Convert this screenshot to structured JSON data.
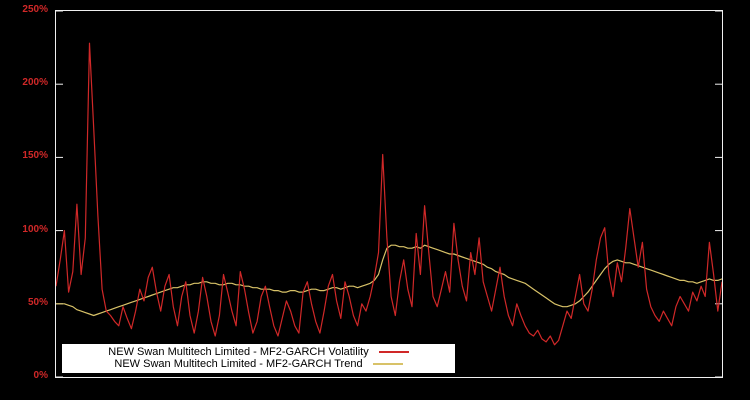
{
  "chart_data": {
    "type": "line",
    "title": "",
    "xlabel": "",
    "ylabel": "",
    "background": "#000000",
    "plot_border_color": "#f0f0f0",
    "ylim": [
      0,
      250
    ],
    "yticks": [
      0,
      50,
      100,
      150,
      200,
      250
    ],
    "ytick_labels": [
      "0%",
      "50%",
      "100%",
      "150%",
      "200%",
      "250%"
    ],
    "ytick_color": "#d02828",
    "x_tick_labels_visible": false,
    "grid": false,
    "legend": {
      "position": "bottom-left",
      "background": "#ffffff",
      "text_color": "#000000"
    },
    "units": "percent",
    "series": [
      {
        "name": "NEW Swan Multitech Limited - MF2-GARCH Volatility",
        "color": "#d02828",
        "values": [
          62,
          80,
          100,
          58,
          72,
          118,
          70,
          95,
          228,
          170,
          110,
          60,
          45,
          42,
          38,
          35,
          48,
          40,
          33,
          45,
          60,
          52,
          68,
          75,
          58,
          45,
          62,
          70,
          48,
          35,
          55,
          65,
          42,
          30,
          45,
          68,
          55,
          38,
          28,
          42,
          70,
          58,
          45,
          35,
          72,
          60,
          44,
          30,
          38,
          55,
          62,
          48,
          35,
          28,
          40,
          52,
          45,
          35,
          30,
          58,
          65,
          50,
          38,
          30,
          45,
          62,
          70,
          52,
          40,
          65,
          55,
          42,
          35,
          50,
          45,
          55,
          68,
          85,
          152,
          95,
          55,
          42,
          65,
          80,
          60,
          48,
          98,
          70,
          117,
          85,
          55,
          48,
          60,
          72,
          58,
          105,
          80,
          62,
          52,
          85,
          70,
          95,
          65,
          55,
          45,
          60,
          75,
          55,
          42,
          35,
          50,
          42,
          35,
          30,
          28,
          32,
          26,
          24,
          28,
          22,
          25,
          35,
          45,
          40,
          55,
          70,
          50,
          45,
          60,
          80,
          95,
          102,
          70,
          55,
          78,
          65,
          88,
          115,
          95,
          75,
          92,
          60,
          48,
          42,
          38,
          45,
          40,
          35,
          48,
          55,
          50,
          45,
          58,
          52,
          62,
          55,
          92,
          70,
          45,
          65
        ]
      },
      {
        "name": "NEW Swan Multitech Limited - MF2-GARCH Trend",
        "color": "#d8c268",
        "values": [
          50,
          50,
          50,
          49,
          48,
          46,
          45,
          44,
          43,
          42,
          43,
          44,
          45,
          46,
          47,
          48,
          49,
          50,
          51,
          52,
          53,
          54,
          55,
          56,
          57,
          58,
          59,
          60,
          61,
          61,
          62,
          63,
          63,
          64,
          64,
          65,
          65,
          64,
          64,
          63,
          63,
          64,
          64,
          63,
          63,
          62,
          62,
          61,
          61,
          60,
          60,
          60,
          59,
          59,
          58,
          58,
          59,
          59,
          58,
          58,
          59,
          60,
          60,
          59,
          59,
          60,
          61,
          61,
          60,
          61,
          62,
          62,
          61,
          62,
          63,
          64,
          66,
          70,
          80,
          88,
          90,
          90,
          89,
          89,
          88,
          88,
          89,
          88,
          90,
          89,
          88,
          87,
          86,
          85,
          84,
          84,
          83,
          82,
          81,
          80,
          79,
          78,
          77,
          75,
          74,
          72,
          71,
          70,
          68,
          67,
          66,
          65,
          64,
          62,
          60,
          58,
          56,
          54,
          52,
          50,
          49,
          48,
          48,
          49,
          50,
          52,
          55,
          58,
          62,
          66,
          70,
          74,
          77,
          79,
          80,
          79,
          78,
          78,
          77,
          76,
          75,
          74,
          73,
          72,
          71,
          70,
          69,
          68,
          67,
          66,
          66,
          65,
          65,
          64,
          65,
          66,
          67,
          66,
          66,
          67
        ]
      }
    ]
  }
}
